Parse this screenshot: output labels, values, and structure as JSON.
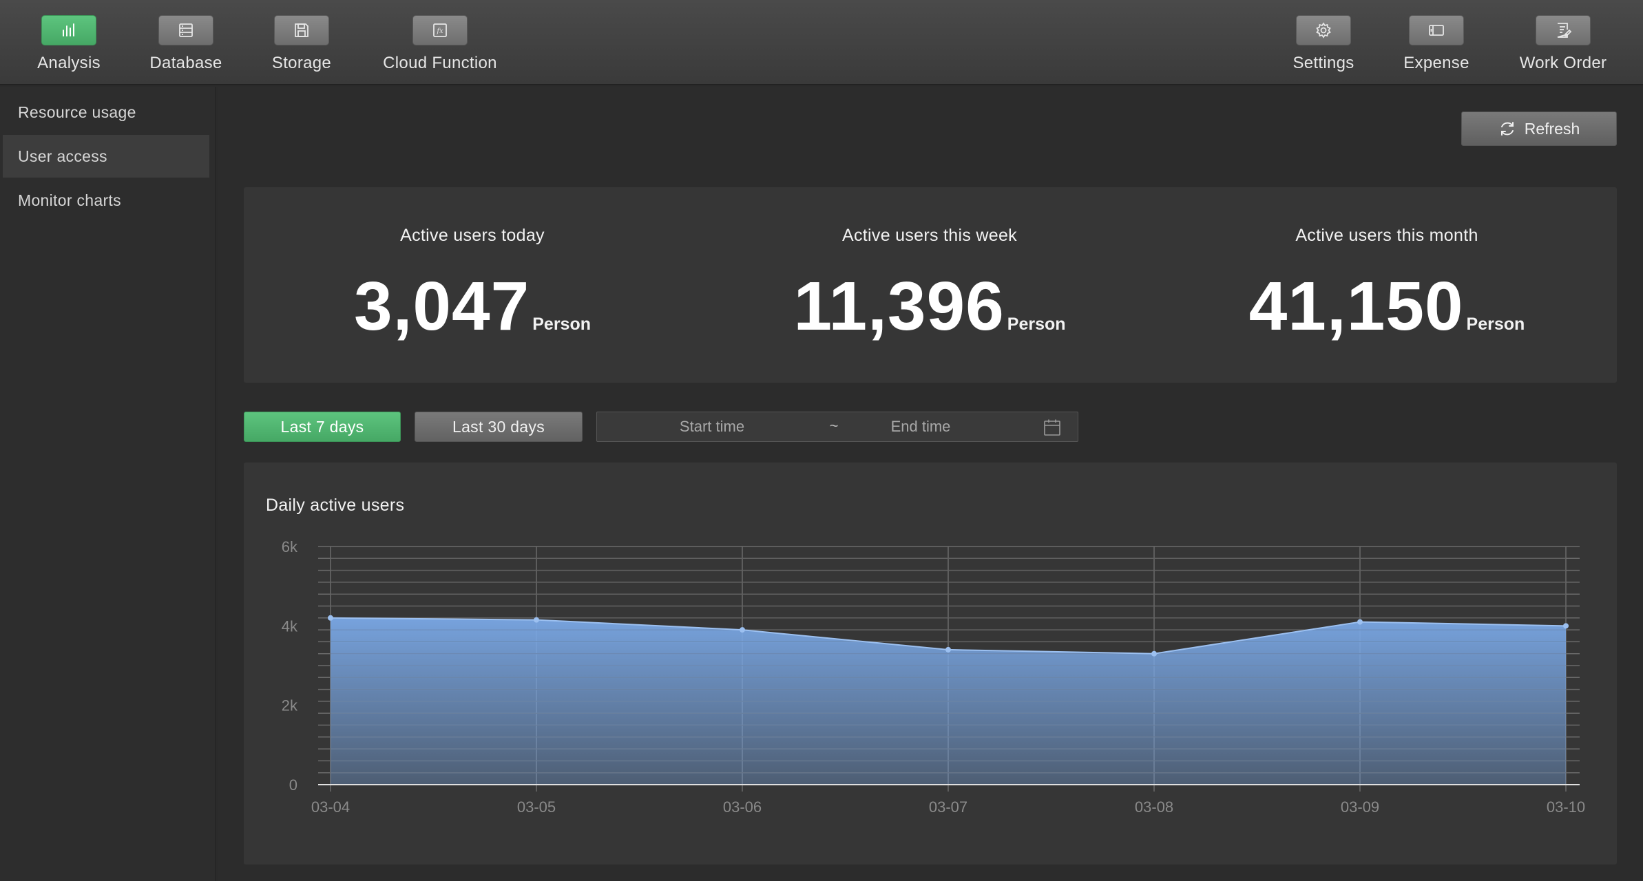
{
  "toolbar": {
    "left": [
      {
        "label": "Analysis",
        "icon": "bar-chart-icon",
        "active": true
      },
      {
        "label": "Database",
        "icon": "database-icon",
        "active": false
      },
      {
        "label": "Storage",
        "icon": "floppy-disk-icon",
        "active": false
      },
      {
        "label": "Cloud Function",
        "icon": "function-icon",
        "active": false
      }
    ],
    "right": [
      {
        "label": "Settings",
        "icon": "gear-icon"
      },
      {
        "label": "Expense",
        "icon": "wallet-icon"
      },
      {
        "label": "Work Order",
        "icon": "work-order-icon"
      }
    ]
  },
  "sidebar": {
    "items": [
      {
        "label": "Resource usage",
        "active": false
      },
      {
        "label": "User access",
        "active": true
      },
      {
        "label": "Monitor charts",
        "active": false
      }
    ]
  },
  "refresh_label": "Refresh",
  "stats": [
    {
      "label": "Active users today",
      "value": "3,047",
      "unit": "Person"
    },
    {
      "label": "Active users this week",
      "value": "11,396",
      "unit": "Person"
    },
    {
      "label": "Active users this month",
      "value": "41,150",
      "unit": "Person"
    }
  ],
  "range": {
    "last7": "Last 7 days",
    "last30": "Last 30 days",
    "start_placeholder": "Start time",
    "separator": "~",
    "end_placeholder": "End time"
  },
  "chart_title": "Daily active users",
  "colors": {
    "accent_green": "#4fb46f",
    "series": "#7aa8e6"
  },
  "chart_data": {
    "type": "area",
    "categories": [
      "03-04",
      "03-05",
      "03-06",
      "03-07",
      "03-08",
      "03-09",
      "03-10"
    ],
    "values": [
      4200,
      4150,
      3900,
      3400,
      3300,
      4100,
      4000
    ],
    "ylim": [
      0,
      6000
    ],
    "yticks": [
      0,
      2000,
      4000,
      6000
    ],
    "ytick_labels": [
      "0",
      "2k",
      "4k",
      "6k"
    ],
    "grid": true
  }
}
